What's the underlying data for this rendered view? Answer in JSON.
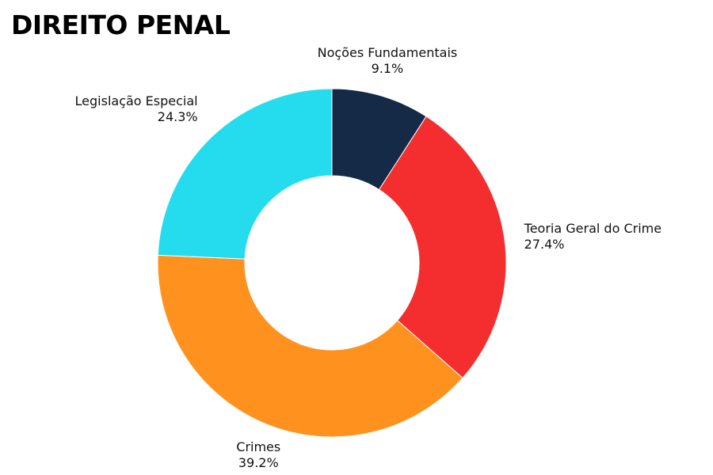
{
  "chart_data": {
    "type": "pie",
    "variant": "donut",
    "title": "DIREITO PENAL",
    "slices": [
      {
        "label": "Noções Fundamentais",
        "value": 9.1,
        "value_label": "9.1%",
        "color": "#142a47"
      },
      {
        "label": "Teoria Geral do Crime",
        "value": 27.4,
        "value_label": "27.4%",
        "color": "#f42e2f"
      },
      {
        "label": "Crimes",
        "value": 39.2,
        "value_label": "39.2%",
        "color": "#ff921f"
      },
      {
        "label": "Legislação Especial",
        "value": 24.3,
        "value_label": "24.3%",
        "color": "#25dcee"
      }
    ],
    "start_angle": "12 o'clock",
    "direction": "clockwise",
    "legend": "none"
  }
}
